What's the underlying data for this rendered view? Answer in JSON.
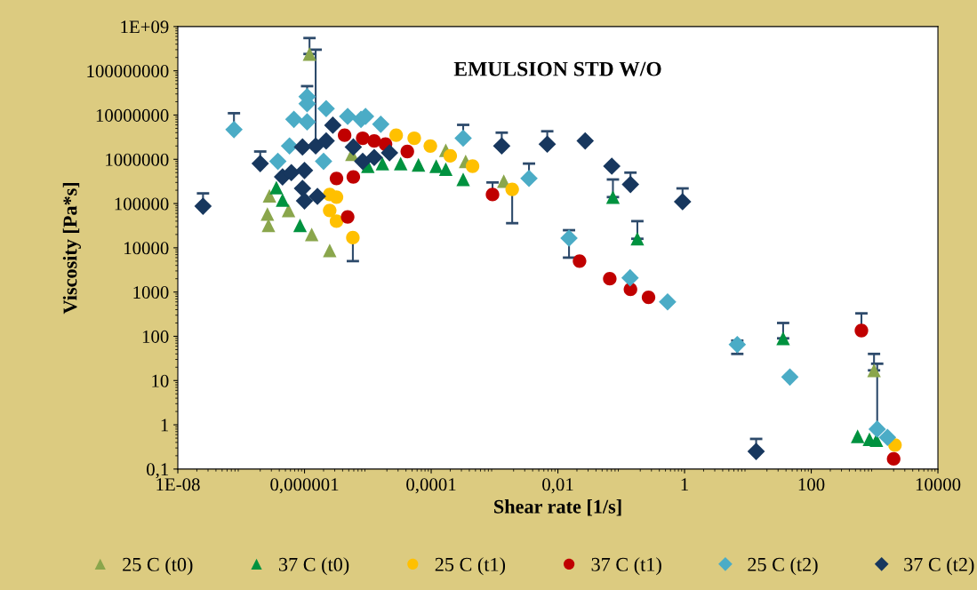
{
  "chart_data": {
    "type": "scatter",
    "title": "EMULSION STD W/O",
    "xlabel": "Shear rate [1/s]",
    "ylabel": "Viscosity [Pa*s]",
    "log": "xy",
    "grid": false,
    "legend": "bottom",
    "xlim": [
      1e-08,
      10000
    ],
    "ylim": [
      0.1,
      1000000000
    ],
    "xticks": [
      {
        "value": 1e-08,
        "label": "1E-08"
      },
      {
        "value": 1e-06,
        "label": "0,000001"
      },
      {
        "value": 0.0001,
        "label": "0,0001"
      },
      {
        "value": 0.01,
        "label": "0,01"
      },
      1,
      100,
      10000
    ],
    "yticks": [
      {
        "value": 0.1,
        "label": "0,1"
      },
      1,
      10,
      100,
      1000,
      10000,
      100000,
      1000000,
      10000000,
      100000000,
      {
        "value": 1000000000,
        "label": "1E+09"
      }
    ],
    "series": [
      {
        "name": "25 C (t0)",
        "color": "#8aa64c",
        "marker": "triangle",
        "x": [
          1.2e-06,
          2.6e-07,
          2.7e-07,
          2.8e-07,
          5.6e-07,
          1.3e-06,
          2.5e-06,
          5.6e-06,
          0.00017,
          0.00035,
          0.0014,
          980
        ],
        "values": [
          240000000,
          58000,
          32000,
          150000,
          70000,
          20000,
          8700,
          1300000,
          1600000,
          900000,
          320000,
          17
        ],
        "errors": [
          [
            240000000,
            550000000
          ],
          null,
          null,
          null,
          null,
          null,
          null,
          null,
          null,
          null,
          null,
          [
            17,
            40
          ]
        ]
      },
      {
        "name": "37 C (t0)",
        "color": "#00923f",
        "marker": "triangle",
        "x": [
          3.6e-07,
          4.5e-07,
          8.5e-07,
          1e-05,
          1.7e-05,
          3.3e-05,
          6.3e-05,
          0.00012,
          0.00017,
          0.00032,
          0.074,
          0.18,
          36,
          540,
          830,
          1070
        ],
        "values": [
          230000,
          120000,
          32000,
          700000,
          800000,
          800000,
          750000,
          700000,
          600000,
          350000,
          140000,
          16000,
          90,
          0.55,
          0.47,
          0.45
        ],
        "errors": [
          null,
          null,
          null,
          null,
          null,
          null,
          null,
          null,
          null,
          null,
          [
            140000,
            350000
          ],
          [
            16000,
            40000
          ],
          [
            90,
            200
          ],
          null,
          null,
          null
        ]
      },
      {
        "name": "25 C (t1)",
        "color": "#ffc000",
        "marker": "circle",
        "x": [
          2.5e-06,
          2.5e-06,
          3.2e-06,
          3.2e-06,
          5.8e-06,
          2.8e-05,
          5.4e-05,
          9.7e-05,
          0.0002,
          0.00045,
          0.0019,
          2100
        ],
        "values": [
          160000,
          70000,
          40000,
          140000,
          17000,
          3500000,
          3000000,
          2000000,
          1200000,
          700000,
          210000,
          0.35
        ],
        "errors": [
          null,
          null,
          null,
          null,
          [
            5000,
            17000
          ],
          null,
          null,
          null,
          null,
          null,
          [
            36000,
            210000
          ],
          null
        ]
      },
      {
        "name": "37 C (t1)",
        "color": "#c00000",
        "marker": "circle",
        "x": [
          4.8e-06,
          3.2e-06,
          5.9e-06,
          4.3e-06,
          8.3e-06,
          1.26e-05,
          1.9e-05,
          4.2e-05,
          0.00093,
          0.022,
          0.066,
          0.14,
          0.27,
          620,
          2000
        ],
        "values": [
          50000,
          370000,
          400000,
          3500000,
          3000000,
          2600000,
          2200000,
          1500000,
          160000,
          5000,
          2000,
          1150,
          760,
          135,
          0.17
        ],
        "errors": [
          null,
          null,
          null,
          null,
          null,
          null,
          null,
          null,
          [
            160000,
            300000
          ],
          null,
          null,
          null,
          null,
          [
            135,
            330
          ],
          null
        ]
      },
      {
        "name": "25 C (t2)",
        "color": "#4bacc6",
        "marker": "diamond",
        "x": [
          7.7e-08,
          3.8e-07,
          6.8e-07,
          1.1e-06,
          1.1e-06,
          1.1e-06,
          2.2e-06,
          4.8e-06,
          7.8e-06,
          9.2e-06,
          1.6e-05,
          5.8e-07,
          2e-06,
          0.00032,
          0.0035,
          0.015,
          0.138,
          0.54,
          6.8,
          46,
          1600,
          1100
        ],
        "values": [
          4700000,
          900000,
          8000000,
          26000000,
          18000000,
          7000000,
          14000000,
          9300000,
          8000000,
          9300000,
          6200000,
          2000000,
          900000,
          3000000,
          370000,
          16500,
          2100,
          600,
          65,
          12,
          0.52,
          0.8
        ],
        "errors": [
          [
            4700000,
            11000000
          ],
          null,
          null,
          [
            26000000,
            45000000
          ],
          null,
          null,
          null,
          null,
          null,
          null,
          null,
          null,
          null,
          [
            3000000,
            6000000
          ],
          [
            370000,
            800000
          ],
          [
            6000,
            25000
          ],
          null,
          null,
          [
            40,
            80
          ],
          null,
          null,
          [
            0.8,
            24
          ]
        ]
      },
      {
        "name": "37 C (t2)",
        "color": "#17375e",
        "marker": "diamond",
        "x": [
          2.5e-08,
          2e-07,
          4.5e-07,
          6.2e-07,
          1e-06,
          9.3e-07,
          1e-06,
          1.6e-06,
          9.3e-07,
          1.5e-06,
          2.8e-06,
          2.2e-06,
          5.9e-06,
          8.3e-06,
          1.26e-05,
          2.2e-05,
          0.0013,
          0.0068,
          0.027,
          0.071,
          0.14,
          0.93,
          13.5
        ],
        "values": [
          87000,
          800000,
          400000,
          500000,
          560000,
          220000,
          115000,
          145000,
          1900000,
          2000000,
          5900000,
          2600000,
          1900000,
          900000,
          1100000,
          1400000,
          2000000,
          2200000,
          2600000,
          700000,
          270000,
          110000,
          0.25
        ],
        "errors": [
          [
            87000,
            170000
          ],
          [
            800000,
            1500000
          ],
          null,
          null,
          null,
          null,
          null,
          null,
          null,
          [
            2000000,
            300000000
          ],
          null,
          null,
          null,
          null,
          null,
          null,
          [
            2000000,
            4000000
          ],
          [
            2200000,
            4300000
          ],
          null,
          null,
          [
            270000,
            500000
          ],
          [
            110000,
            220000
          ],
          [
            0.25,
            0.48
          ]
        ]
      }
    ]
  }
}
